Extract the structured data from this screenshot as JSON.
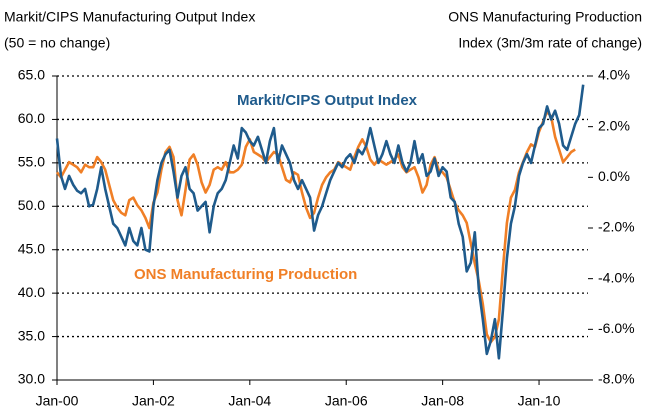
{
  "chart_data": {
    "type": "line",
    "y_label": [
      "Markit/CIPS Manufacturing Output Index",
      "(50 = no change)"
    ],
    "y2_label": [
      "ONS Manufacturing Production",
      "Index (3m/3m rate of change)"
    ],
    "annotations": [
      "Markit/CIPS Output Index",
      "ONS Manufacturing Production"
    ],
    "categories": [
      "Jan-00",
      null,
      null,
      null,
      null,
      null,
      null,
      null,
      null,
      null,
      null,
      null,
      null,
      null,
      null,
      null,
      null,
      null,
      null,
      null,
      null,
      null,
      null,
      null,
      "Jan-02",
      null,
      null,
      null,
      null,
      null,
      null,
      null,
      null,
      null,
      null,
      null,
      null,
      null,
      null,
      null,
      null,
      null,
      null,
      null,
      null,
      null,
      null,
      null,
      "Jan-04",
      null,
      null,
      null,
      null,
      null,
      null,
      null,
      null,
      null,
      null,
      null,
      null,
      null,
      null,
      null,
      null,
      null,
      null,
      null,
      null,
      null,
      null,
      null,
      "Jan-06",
      null,
      null,
      null,
      null,
      null,
      null,
      null,
      null,
      null,
      null,
      null,
      null,
      null,
      null,
      null,
      null,
      null,
      null,
      null,
      null,
      null,
      null,
      null,
      "Jan-08",
      null,
      null,
      null,
      null,
      null,
      null,
      null,
      null,
      null,
      null,
      null,
      null,
      null,
      null,
      null,
      null,
      null,
      null,
      null,
      null,
      null,
      null,
      null,
      "Jan-10",
      null,
      null,
      null,
      null,
      null,
      null,
      null,
      null,
      null,
      null,
      null
    ],
    "series": [
      {
        "name": "Markit/CIPS Output Index",
        "color": "#1f5b8c",
        "axis": "y",
        "values": [
          57.8,
          53.5,
          52.0,
          53.5,
          52.5,
          51.8,
          51.5,
          52.0,
          50.0,
          50.2,
          52.0,
          54.5,
          52.0,
          50.0,
          48.0,
          47.5,
          46.5,
          45.5,
          47.5,
          46.0,
          45.5,
          47.5,
          45.0,
          44.8,
          50.0,
          53.0,
          55.0,
          56.0,
          56.5,
          54.0,
          51.0,
          53.5,
          54.5,
          52.0,
          51.5,
          49.5,
          50.0,
          50.5,
          47.0,
          50.0,
          51.5,
          52.0,
          53.0,
          55.0,
          57.0,
          55.5,
          59.0,
          58.5,
          57.5,
          57.0,
          58.0,
          56.5,
          55.0,
          57.5,
          59.0,
          55.0,
          57.0,
          56.0,
          55.0,
          53.0,
          52.0,
          53.0,
          52.0,
          51.0,
          47.2,
          49.0,
          50.0,
          51.5,
          53.0,
          54.0,
          55.0,
          54.5,
          55.5,
          56.0,
          55.0,
          56.5,
          56.0,
          57.0,
          59.0,
          57.0,
          55.0,
          56.0,
          57.5,
          56.0,
          55.0,
          57.0,
          55.0,
          54.0,
          55.0,
          57.5,
          55.0,
          56.0,
          53.5,
          54.0,
          55.5,
          53.5,
          54.5,
          54.0,
          51.0,
          50.5,
          48.0,
          46.5,
          42.5,
          43.5,
          47.0,
          40.5,
          37.0,
          33.0,
          34.5,
          37.0,
          32.5,
          38.0,
          44.0,
          48.0,
          50.0,
          53.5,
          55.0,
          56.0,
          55.0,
          57.0,
          59.0,
          59.5,
          61.5,
          60.0,
          61.0,
          59.5,
          57.0,
          56.5,
          58.0,
          59.5,
          60.5,
          64.0
        ]
      },
      {
        "name": "ONS Manufacturing Production",
        "color": "#f07f26",
        "axis": "y2",
        "values": [
          0.2,
          0.0,
          0.3,
          0.6,
          0.5,
          0.4,
          0.2,
          0.5,
          0.4,
          0.4,
          0.8,
          0.6,
          0.3,
          -0.3,
          -0.9,
          -1.2,
          -1.4,
          -1.5,
          -0.9,
          -0.8,
          -1.1,
          -1.3,
          -1.6,
          -2.0,
          -1.0,
          -0.6,
          0.3,
          1.0,
          1.2,
          0.8,
          -0.9,
          -1.5,
          -0.5,
          0.7,
          0.9,
          0.5,
          -0.2,
          -0.6,
          -0.3,
          0.3,
          0.4,
          0.3,
          0.6,
          0.2,
          0.2,
          0.3,
          0.5,
          1.2,
          1.5,
          1.0,
          0.9,
          0.8,
          0.6,
          0.8,
          1.0,
          0.9,
          0.4,
          -0.1,
          -0.2,
          0.2,
          0.1,
          -0.6,
          -1.2,
          -1.6,
          -1.4,
          -0.8,
          -0.3,
          0.0,
          0.2,
          0.3,
          0.6,
          0.5,
          0.4,
          0.3,
          0.8,
          1.2,
          1.5,
          1.2,
          0.7,
          0.5,
          0.7,
          0.6,
          0.5,
          0.6,
          0.7,
          0.9,
          0.4,
          0.2,
          0.3,
          0.4,
          0.0,
          -0.6,
          -0.3,
          0.5,
          0.8,
          0.3,
          0.2,
          0.0,
          -0.5,
          -1.0,
          -1.3,
          -1.5,
          -1.8,
          -2.6,
          -3.4,
          -4.1,
          -5.0,
          -6.2,
          -6.5,
          -6.3,
          -5.6,
          -3.6,
          -1.8,
          -0.8,
          -0.5,
          0.2,
          0.6,
          1.0,
          1.3,
          1.2,
          1.8,
          2.2,
          2.6,
          2.4,
          1.6,
          1.1,
          0.6,
          0.8,
          1.0,
          1.1,
          null,
          null
        ]
      }
    ],
    "ylim": [
      30,
      65
    ],
    "yticks": [
      {
        "value": 30,
        "label": "30.0"
      },
      {
        "value": 35,
        "label": "35.0"
      },
      {
        "value": 40,
        "label": "40.0"
      },
      {
        "value": 45,
        "label": "45.0"
      },
      {
        "value": 50,
        "label": "50.0"
      },
      {
        "value": 55,
        "label": "55.0"
      },
      {
        "value": 60,
        "label": "60.0"
      },
      {
        "value": 65,
        "label": "65.0"
      }
    ],
    "y2lim": [
      -8,
      4
    ],
    "y2ticks": [
      {
        "value": -8,
        "label": "-8.0%"
      },
      {
        "value": -6,
        "label": "-6.0%"
      },
      {
        "value": -4,
        "label": "-4.0%"
      },
      {
        "value": -2,
        "label": "-2.0%"
      },
      {
        "value": 0,
        "label": "0.0%"
      },
      {
        "value": 2,
        "label": "2.0%"
      },
      {
        "value": 4,
        "label": "4.0%"
      }
    ],
    "grid": true
  }
}
